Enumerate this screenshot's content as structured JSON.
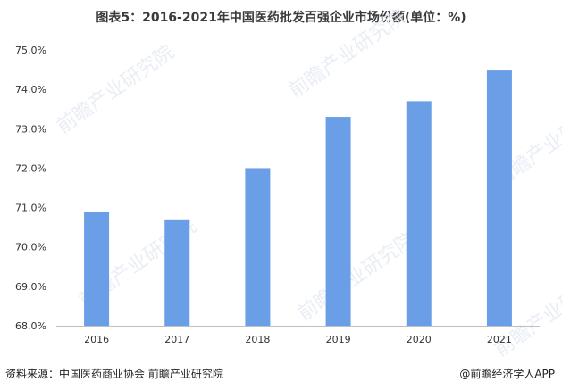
{
  "chart_data": {
    "type": "bar",
    "title": "图表5：2016-2021年中国医药批发百强企业市场份额(单位：%)",
    "categories": [
      "2016",
      "2017",
      "2018",
      "2019",
      "2020",
      "2021"
    ],
    "values": [
      70.9,
      70.7,
      72.0,
      73.3,
      73.7,
      74.5
    ],
    "ylim": [
      68.0,
      75.0
    ],
    "yticks": [
      "68.0%",
      "69.0%",
      "70.0%",
      "71.0%",
      "72.0%",
      "73.0%",
      "74.0%",
      "75.0%"
    ],
    "xlabel": "",
    "ylabel": "",
    "grid": false,
    "bar_color": "#6a9fe8"
  },
  "footer": {
    "source": "资料来源：中国医药商业协会 前瞻产业研究院",
    "brand": "@前瞻经济学人APP"
  },
  "watermark": "前瞻产业研究院"
}
